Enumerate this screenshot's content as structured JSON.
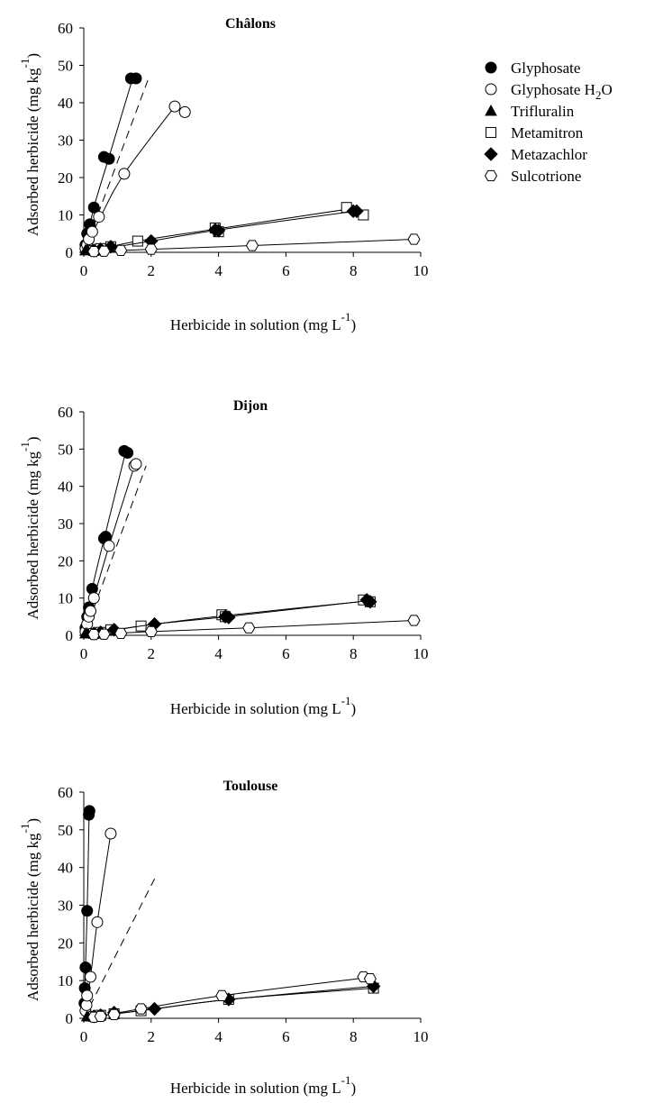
{
  "figure": {
    "legend_placement": "top-right",
    "legend": [
      {
        "series": "Glyphosate",
        "label": "Glyphosate",
        "marker": "circle-filled"
      },
      {
        "series": "Glyphosate H2O",
        "label": "Glyphosate H",
        "sub": "2",
        "tail": "O",
        "marker": "circle-open"
      },
      {
        "series": "Trifluralin",
        "label": "Trifluralin",
        "marker": "triangle-filled"
      },
      {
        "series": "Metamitron",
        "label": "Metamitron",
        "marker": "square-open"
      },
      {
        "series": "Metazachlor",
        "label": "Metazachlor",
        "marker": "diamond-filled"
      },
      {
        "series": "Sulcotrione",
        "label": "Sulcotrione",
        "marker": "hexagon-open"
      }
    ],
    "colors": {
      "ink": "#000000",
      "background": "#ffffff"
    }
  },
  "chart_data": [
    {
      "type": "scatter",
      "title": "Châlons",
      "xlabel": "Herbicide in solution (mg L",
      "xlabel_sup": "-1",
      "xlabel_tail": ")",
      "ylabel": "Adsorbed herbicide (mg kg",
      "ylabel_sup": "-1",
      "ylabel_tail": ")",
      "xlim": [
        0,
        10
      ],
      "ylim": [
        0,
        60
      ],
      "xticks": [
        0,
        2,
        4,
        6,
        8,
        10
      ],
      "yticks": [
        0,
        10,
        20,
        30,
        40,
        50,
        60
      ],
      "grid": false,
      "reference_line": {
        "style": "dashed",
        "points": [
          [
            0,
            0
          ],
          [
            1.9,
            46
          ]
        ]
      },
      "series": [
        {
          "name": "Glyphosate",
          "marker": "circle-filled",
          "points": [
            [
              0.05,
              2
            ],
            [
              0.1,
              5
            ],
            [
              0.18,
              7.5
            ],
            [
              0.3,
              12
            ],
            [
              0.6,
              25.5
            ],
            [
              0.75,
              25
            ],
            [
              1.4,
              46.5
            ],
            [
              1.55,
              46.5
            ]
          ],
          "fit": [
            [
              0,
              0
            ],
            [
              0.3,
              12
            ],
            [
              0.75,
              25.5
            ],
            [
              1.45,
              46.5
            ]
          ]
        },
        {
          "name": "Glyphosate H2O",
          "marker": "circle-open",
          "points": [
            [
              0.05,
              1
            ],
            [
              0.1,
              2
            ],
            [
              0.15,
              3.5
            ],
            [
              0.25,
              5.5
            ],
            [
              0.45,
              9.5
            ],
            [
              1.2,
              21
            ],
            [
              2.7,
              39
            ],
            [
              3,
              37.5
            ]
          ],
          "fit": [
            [
              0,
              0
            ],
            [
              0.5,
              9.5
            ],
            [
              1.2,
              21
            ],
            [
              2.7,
              39
            ]
          ]
        },
        {
          "name": "Trifluralin",
          "marker": "triangle-filled",
          "points": [
            [
              0.05,
              0.5
            ],
            [
              0.1,
              0.7
            ]
          ],
          "fit": []
        },
        {
          "name": "Metamitron",
          "marker": "square-open",
          "points": [
            [
              0.3,
              0.5
            ],
            [
              0.5,
              1
            ],
            [
              0.8,
              1.5
            ],
            [
              1.6,
              3
            ],
            [
              3.9,
              6.5
            ],
            [
              4,
              5.5
            ],
            [
              7.8,
              12
            ],
            [
              8.3,
              10
            ]
          ],
          "fit": [
            [
              0.3,
              0.5
            ],
            [
              1.6,
              3
            ],
            [
              3.9,
              6.2
            ],
            [
              7.8,
              11.5
            ]
          ]
        },
        {
          "name": "Metazachlor",
          "marker": "diamond-filled",
          "points": [
            [
              0.3,
              0.5
            ],
            [
              0.5,
              0.8
            ],
            [
              0.8,
              1.5
            ],
            [
              2,
              3
            ],
            [
              3.9,
              6
            ],
            [
              4,
              5.8
            ],
            [
              8,
              11
            ],
            [
              8.1,
              11
            ]
          ],
          "fit": [
            [
              0.3,
              0.5
            ],
            [
              2,
              3
            ],
            [
              4,
              6
            ],
            [
              8.05,
              11
            ]
          ]
        },
        {
          "name": "Sulcotrione",
          "marker": "hexagon-open",
          "points": [
            [
              0.3,
              0.2
            ],
            [
              0.6,
              0.3
            ],
            [
              1.1,
              0.5
            ],
            [
              2,
              0.8
            ],
            [
              5,
              1.8
            ],
            [
              9.8,
              3.5
            ]
          ],
          "fit": [
            [
              0.3,
              0.2
            ],
            [
              2,
              0.8
            ],
            [
              5,
              1.8
            ],
            [
              9.8,
              3.5
            ]
          ]
        }
      ]
    },
    {
      "type": "scatter",
      "title": "Dijon",
      "xlabel": "Herbicide in solution (mg L",
      "xlabel_sup": "-1",
      "xlabel_tail": ")",
      "ylabel": "Adsorbed herbicide (mg kg",
      "ylabel_sup": "-1",
      "ylabel_tail": ")",
      "xlim": [
        0,
        10
      ],
      "ylim": [
        0,
        60
      ],
      "xticks": [
        0,
        2,
        4,
        6,
        8,
        10
      ],
      "yticks": [
        0,
        10,
        20,
        30,
        40,
        50,
        60
      ],
      "grid": false,
      "reference_line": {
        "style": "dashed",
        "points": [
          [
            0,
            0
          ],
          [
            1.85,
            45.5
          ]
        ]
      },
      "series": [
        {
          "name": "Glyphosate",
          "marker": "circle-filled",
          "points": [
            [
              0.05,
              2
            ],
            [
              0.1,
              5
            ],
            [
              0.15,
              7.5
            ],
            [
              0.25,
              12.5
            ],
            [
              0.6,
              26
            ],
            [
              0.65,
              26.5
            ],
            [
              1.2,
              49.5
            ],
            [
              1.3,
              49
            ]
          ],
          "fit": [
            [
              0,
              0
            ],
            [
              0.25,
              12.5
            ],
            [
              0.62,
              26.5
            ],
            [
              1.25,
              49.5
            ]
          ]
        },
        {
          "name": "Glyphosate H2O",
          "marker": "circle-open",
          "points": [
            [
              0.05,
              1
            ],
            [
              0.1,
              3
            ],
            [
              0.15,
              5
            ],
            [
              0.2,
              6.5
            ],
            [
              0.3,
              10
            ],
            [
              0.75,
              24
            ],
            [
              1.5,
              45.5
            ],
            [
              1.55,
              46
            ]
          ],
          "fit": [
            [
              0,
              0
            ],
            [
              0.3,
              10
            ],
            [
              0.75,
              24
            ],
            [
              1.52,
              46
            ]
          ]
        },
        {
          "name": "Trifluralin",
          "marker": "triangle-filled",
          "points": [
            [
              0.05,
              0.5
            ],
            [
              0.1,
              0.5
            ]
          ],
          "fit": []
        },
        {
          "name": "Metamitron",
          "marker": "square-open",
          "points": [
            [
              0.3,
              0.5
            ],
            [
              0.5,
              0.8
            ],
            [
              0.8,
              1.5
            ],
            [
              1.7,
              2.5
            ],
            [
              4.1,
              5.5
            ],
            [
              4.2,
              5
            ],
            [
              8.3,
              9.5
            ],
            [
              8.5,
              9
            ]
          ],
          "fit": [
            [
              0.3,
              0.5
            ],
            [
              1.7,
              2.5
            ],
            [
              4.1,
              5.2
            ],
            [
              8.4,
              9.2
            ]
          ]
        },
        {
          "name": "Metazachlor",
          "marker": "diamond-filled",
          "points": [
            [
              0.3,
              0.5
            ],
            [
              0.5,
              0.8
            ],
            [
              0.9,
              1.5
            ],
            [
              2.1,
              3
            ],
            [
              4.2,
              5
            ],
            [
              4.3,
              4.8
            ],
            [
              8.4,
              9.5
            ],
            [
              8.5,
              9
            ]
          ],
          "fit": [
            [
              0.3,
              0.5
            ],
            [
              2.1,
              3
            ],
            [
              4.25,
              5
            ],
            [
              8.45,
              9.3
            ]
          ]
        },
        {
          "name": "Sulcotrione",
          "marker": "hexagon-open",
          "points": [
            [
              0.3,
              0.2
            ],
            [
              0.6,
              0.3
            ],
            [
              1.1,
              0.5
            ],
            [
              2,
              1
            ],
            [
              4.9,
              2
            ],
            [
              9.8,
              4
            ]
          ],
          "fit": [
            [
              0.3,
              0.2
            ],
            [
              2,
              1
            ],
            [
              4.9,
              2
            ],
            [
              9.8,
              4
            ]
          ]
        }
      ]
    },
    {
      "type": "scatter",
      "title": "Toulouse",
      "xlabel": "Herbicide in solution (mg L",
      "xlabel_sup": "-1",
      "xlabel_tail": ")",
      "ylabel": "Adsorbed herbicide (mg kg",
      "ylabel_sup": "-1",
      "ylabel_tail": ")",
      "xlim": [
        0,
        10
      ],
      "ylim": [
        0,
        60
      ],
      "xticks": [
        0,
        2,
        4,
        6,
        8,
        10
      ],
      "yticks": [
        0,
        10,
        20,
        30,
        40,
        50,
        60
      ],
      "grid": false,
      "reference_line": {
        "style": "dashed",
        "points": [
          [
            0,
            0
          ],
          [
            2.1,
            37
          ]
        ]
      },
      "series": [
        {
          "name": "Glyphosate",
          "marker": "circle-filled",
          "points": [
            [
              0.02,
              4
            ],
            [
              0.03,
              8
            ],
            [
              0.05,
              13.5
            ],
            [
              0.1,
              28.5
            ],
            [
              0.15,
              54
            ],
            [
              0.17,
              55
            ]
          ],
          "fit": [
            [
              0,
              0
            ],
            [
              0.1,
              28.5
            ],
            [
              0.16,
              55
            ]
          ]
        },
        {
          "name": "Glyphosate H2O",
          "marker": "circle-open",
          "points": [
            [
              0.05,
              2
            ],
            [
              0.08,
              3.5
            ],
            [
              0.1,
              6
            ],
            [
              0.2,
              11
            ],
            [
              0.4,
              25.5
            ],
            [
              0.8,
              49
            ]
          ],
          "fit": [
            [
              0,
              0
            ],
            [
              0.2,
              11
            ],
            [
              0.4,
              25.5
            ],
            [
              0.8,
              49
            ]
          ]
        },
        {
          "name": "Trifluralin",
          "marker": "triangle-filled",
          "points": [
            [
              0.1,
              0.5
            ],
            [
              0.2,
              0.5
            ]
          ],
          "fit": []
        },
        {
          "name": "Metamitron",
          "marker": "square-open",
          "points": [
            [
              0.3,
              0.5
            ],
            [
              0.5,
              0.8
            ],
            [
              0.9,
              1.2
            ],
            [
              1.7,
              2
            ],
            [
              4.3,
              5
            ],
            [
              8.6,
              8
            ]
          ],
          "fit": [
            [
              0.3,
              0.5
            ],
            [
              1.7,
              2
            ],
            [
              4.3,
              5
            ],
            [
              8.6,
              8
            ]
          ]
        },
        {
          "name": "Metazachlor",
          "marker": "diamond-filled",
          "points": [
            [
              0.3,
              0.5
            ],
            [
              0.5,
              0.8
            ],
            [
              0.9,
              1.5
            ],
            [
              2.1,
              2.5
            ],
            [
              4.3,
              5
            ],
            [
              8.6,
              8.5
            ]
          ],
          "fit": [
            [
              0.3,
              0.5
            ],
            [
              2.1,
              2.5
            ],
            [
              4.3,
              5
            ],
            [
              8.6,
              8.5
            ]
          ]
        },
        {
          "name": "Sulcotrione",
          "marker": "hexagon-open",
          "points": [
            [
              0.3,
              0.3
            ],
            [
              0.5,
              0.5
            ],
            [
              0.9,
              1
            ],
            [
              1.7,
              2.5
            ],
            [
              4.1,
              6
            ],
            [
              8.3,
              11
            ],
            [
              8.5,
              10.5
            ]
          ],
          "fit": [
            [
              0.3,
              0.3
            ],
            [
              1.7,
              2.5
            ],
            [
              4.1,
              6
            ],
            [
              8.4,
              10.8
            ]
          ]
        }
      ]
    }
  ]
}
